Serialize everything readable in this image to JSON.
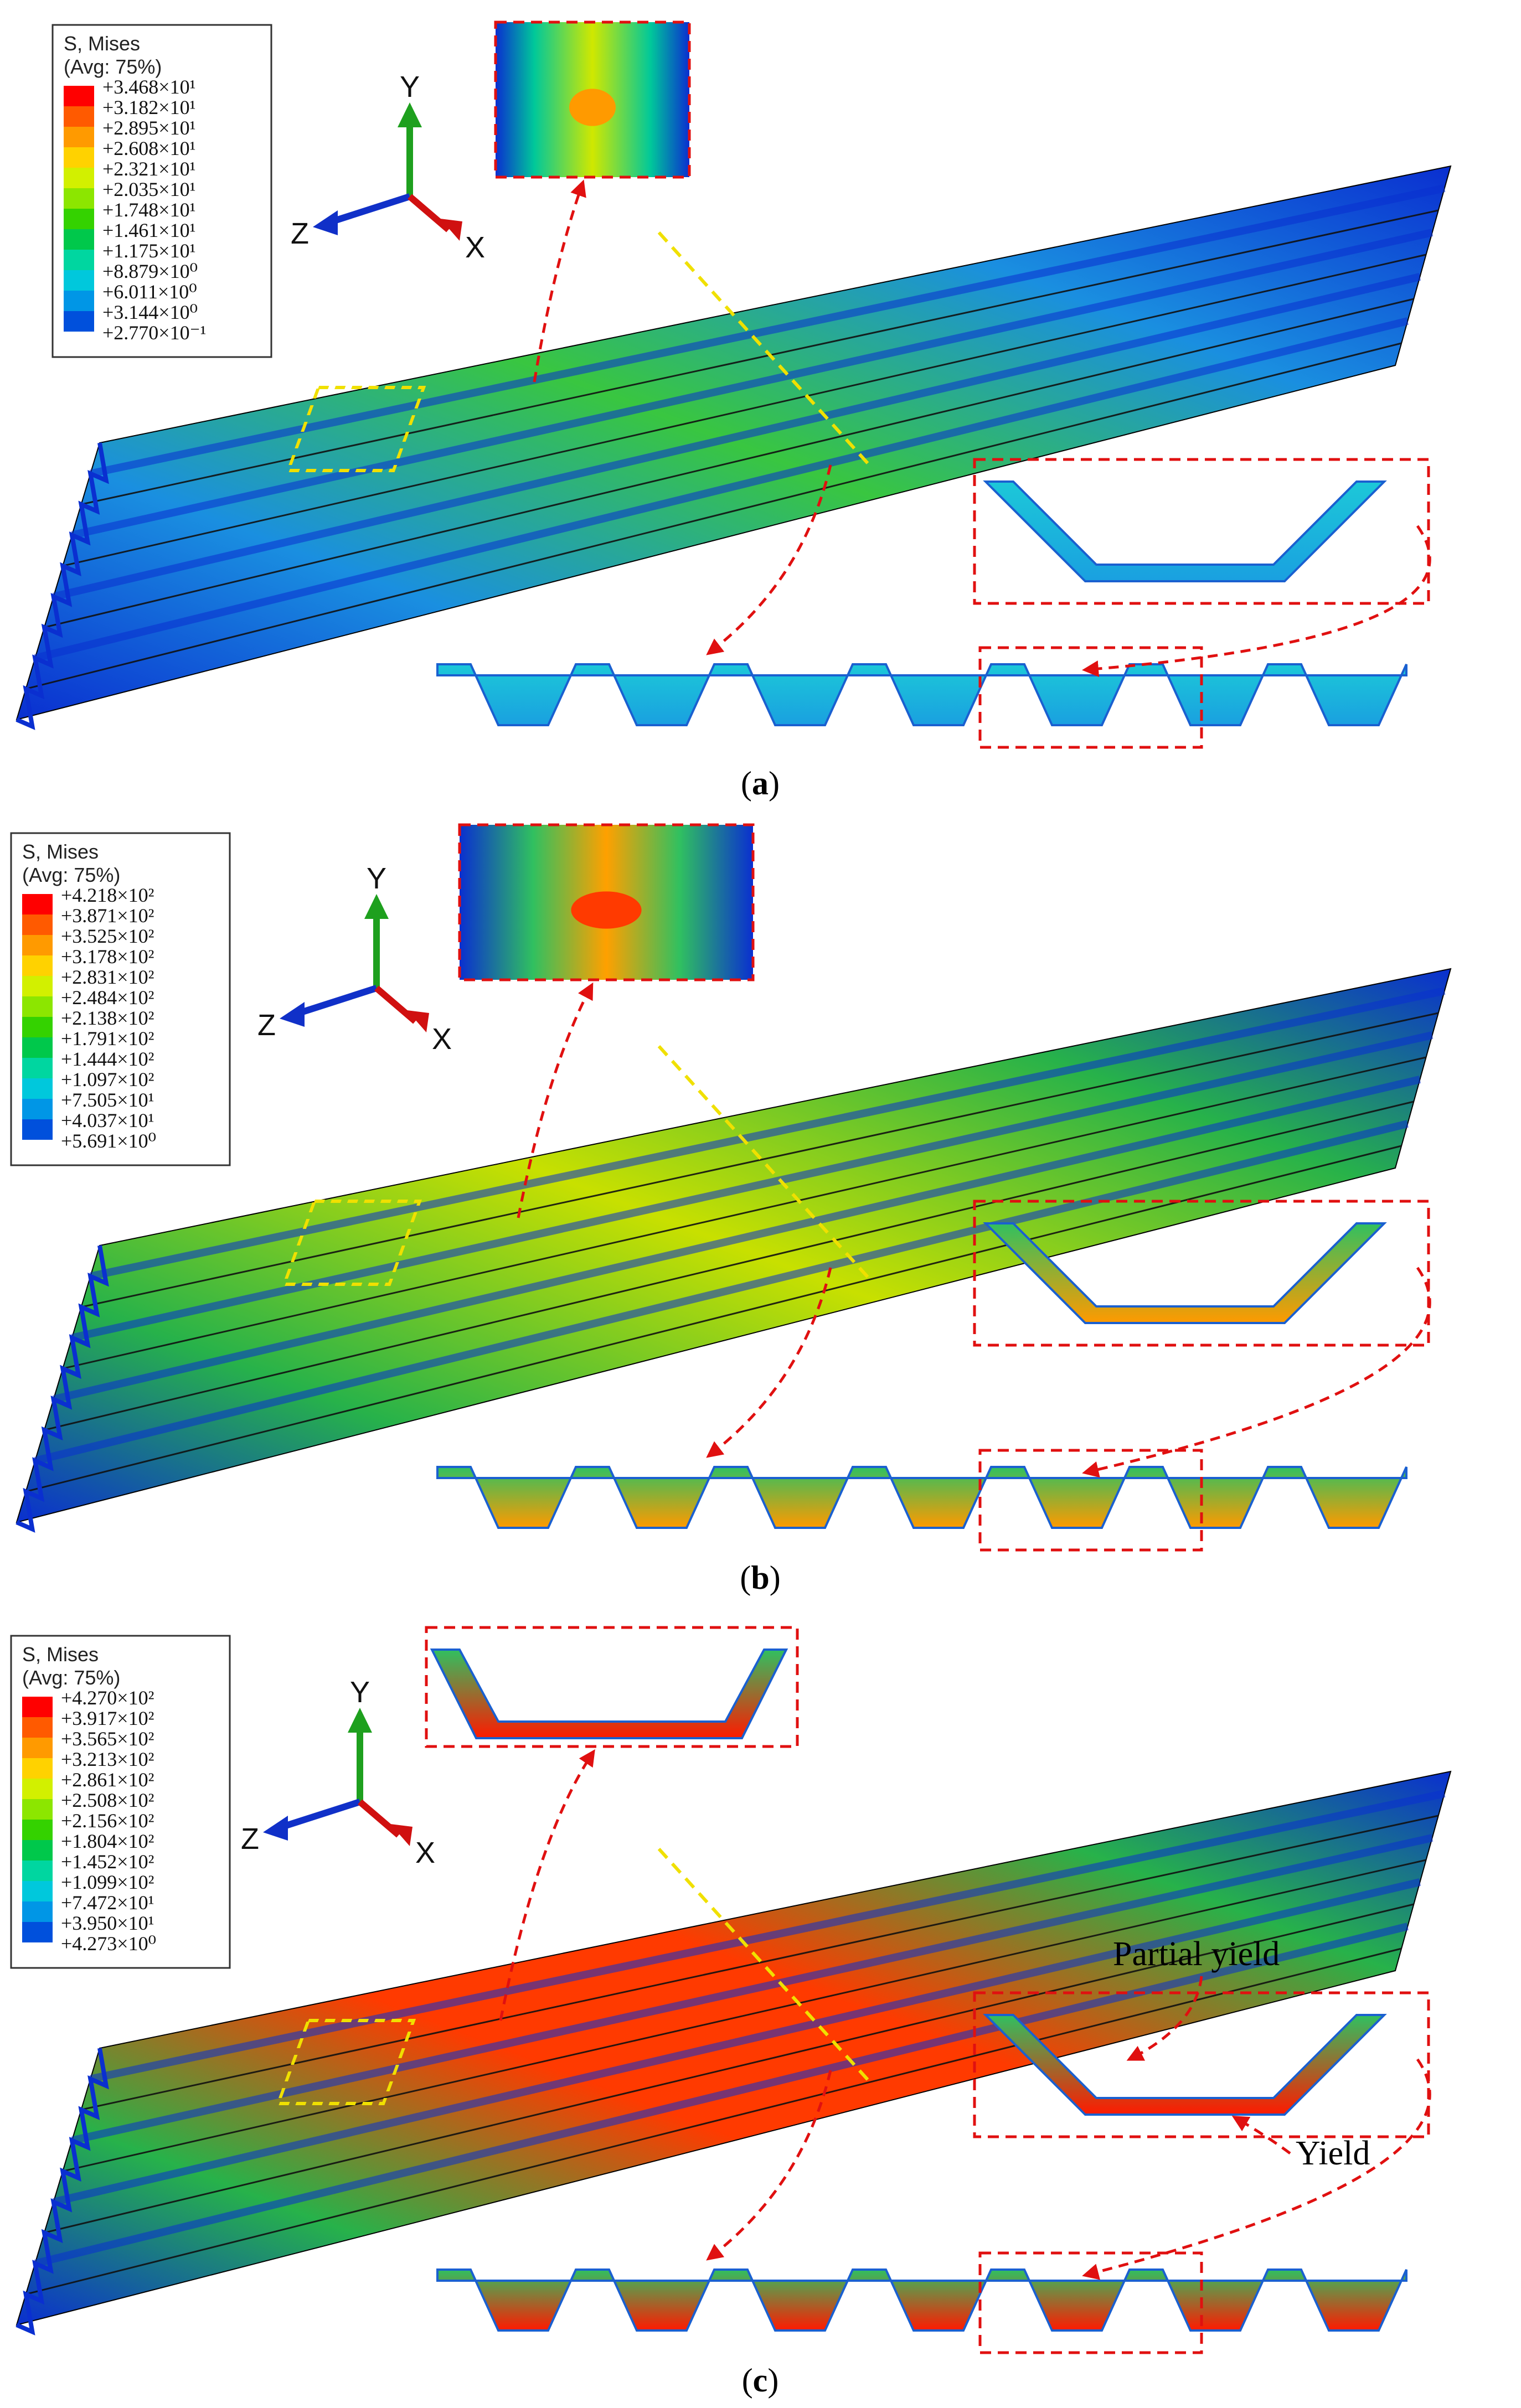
{
  "panels": [
    {
      "caption": "a",
      "legend": {
        "title": "S, Mises",
        "subtitle": "(Avg: 75%)",
        "values": [
          "+3.468×10¹",
          "+3.182×10¹",
          "+2.895×10¹",
          "+2.608×10¹",
          "+2.321×10¹",
          "+2.035×10¹",
          "+1.748×10¹",
          "+1.461×10¹",
          "+1.175×10¹",
          "+8.879×10⁰",
          "+6.011×10⁰",
          "+3.144×10⁰",
          "+2.770×10⁻¹"
        ]
      },
      "axes": {
        "y": "Y",
        "z": "Z",
        "x": "X"
      }
    },
    {
      "caption": "b",
      "legend": {
        "title": "S, Mises",
        "subtitle": "(Avg: 75%)",
        "values": [
          "+4.218×10²",
          "+3.871×10²",
          "+3.525×10²",
          "+3.178×10²",
          "+2.831×10²",
          "+2.484×10²",
          "+2.138×10²",
          "+1.791×10²",
          "+1.444×10²",
          "+1.097×10²",
          "+7.505×10¹",
          "+4.037×10¹",
          "+5.691×10⁰"
        ]
      },
      "axes": {
        "y": "Y",
        "z": "Z",
        "x": "X"
      }
    },
    {
      "caption": "c",
      "legend": {
        "title": "S, Mises",
        "subtitle": "(Avg: 75%)",
        "values": [
          "+4.270×10²",
          "+3.917×10²",
          "+3.565×10²",
          "+3.213×10²",
          "+2.861×10²",
          "+2.508×10²",
          "+2.156×10²",
          "+1.804×10²",
          "+1.452×10²",
          "+1.099×10²",
          "+7.472×10¹",
          "+3.950×10¹",
          "+4.273×10⁰"
        ]
      },
      "axes": {
        "y": "Y",
        "z": "Z",
        "x": "X"
      },
      "notes": {
        "partial_yield": "Partial yield",
        "yield": "Yield"
      }
    }
  ],
  "colors": {
    "legend_scale": [
      "#ff0000",
      "#ff5a00",
      "#ff9a00",
      "#ffd200",
      "#d2f000",
      "#8ce600",
      "#34d200",
      "#00c84b",
      "#00d6a0",
      "#00c8dc",
      "#0096e6",
      "#0050dc",
      "#0000c8"
    ],
    "callout": "#e01010",
    "marker": "#f0e000",
    "axis_y": "#1ea01e",
    "axis_z": "#1030c8",
    "axis_x": "#d01010"
  }
}
